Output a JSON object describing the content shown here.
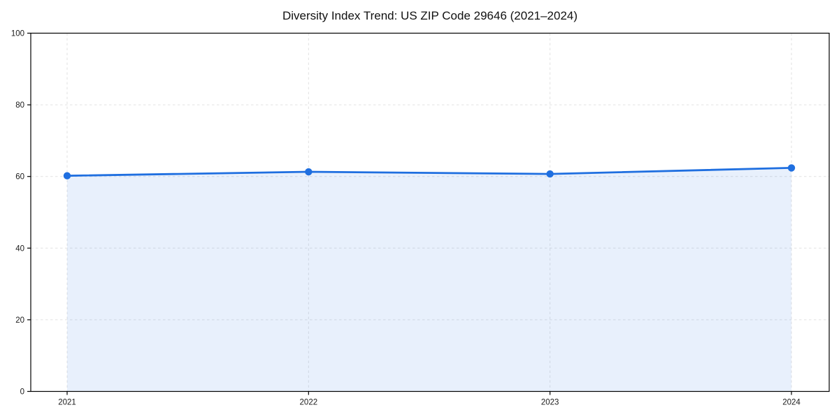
{
  "chart_data": {
    "type": "area",
    "title": "Diversity Index Trend: US ZIP Code 29646 (2021–2024)",
    "categories": [
      "2021",
      "2022",
      "2023",
      "2024"
    ],
    "series": [
      {
        "name": "Diversity Index",
        "values": [
          60.2,
          61.3,
          60.7,
          62.4
        ]
      }
    ],
    "xlabel": "",
    "ylabel": "",
    "ylim": [
      0,
      100
    ],
    "yticks": [
      0,
      20,
      40,
      60,
      80,
      100
    ],
    "grid": "dashed, horizontal and vertical",
    "legend": "none",
    "line_color": "#1f6fe0",
    "fill_opacity": 0.1,
    "marker": "circle"
  }
}
